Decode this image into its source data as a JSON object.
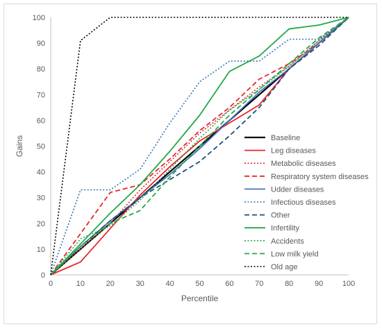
{
  "chart_data": {
    "type": "line",
    "title": "",
    "xlabel": "Percentile",
    "ylabel": "Gains",
    "xlim": [
      0,
      100
    ],
    "ylim": [
      0,
      100
    ],
    "x": [
      0,
      10,
      20,
      30,
      40,
      50,
      60,
      70,
      80,
      90,
      100
    ],
    "xticks": [
      "0",
      "10",
      "20",
      "30",
      "40",
      "50",
      "60",
      "70",
      "80",
      "90",
      "100"
    ],
    "yticks": [
      "0",
      "10",
      "20",
      "30",
      "40",
      "50",
      "60",
      "70",
      "80",
      "90",
      "100"
    ],
    "grid": false,
    "legend_position": "right",
    "series": [
      {
        "name": "Baseline",
        "color": "#000000",
        "dash": "solid",
        "width": 2.2,
        "values": [
          0,
          10,
          20,
          30,
          40,
          50,
          60,
          70,
          80,
          90,
          100
        ]
      },
      {
        "name": "Leg diseases",
        "color": "#e8242a",
        "dash": "solid",
        "width": 1.8,
        "values": [
          0,
          5,
          18,
          31,
          42,
          52,
          59,
          66,
          80,
          90,
          100
        ]
      },
      {
        "name": "Metabolic diseases",
        "color": "#e8242a",
        "dash": "dot",
        "width": 1.6,
        "values": [
          0,
          10,
          20,
          33,
          44,
          55,
          64,
          73,
          81,
          91,
          100
        ]
      },
      {
        "name": "Respiratory system diseases",
        "color": "#e8242a",
        "dash": "dash",
        "width": 1.8,
        "values": [
          0,
          16,
          32,
          35,
          45,
          56,
          65,
          76,
          82,
          90,
          100
        ]
      },
      {
        "name": "Udder diseases",
        "color": "#4472c4",
        "dash": "solid",
        "width": 1.8,
        "values": [
          0,
          11,
          21,
          30,
          39,
          49,
          60,
          71,
          80,
          90,
          100
        ]
      },
      {
        "name": "Infectious diseases",
        "color": "#2e75b6",
        "dash": "dot",
        "width": 1.6,
        "values": [
          0,
          33,
          33,
          41,
          59,
          75,
          83,
          83,
          91.5,
          91.5,
          100
        ]
      },
      {
        "name": "Other",
        "color": "#1f4e79",
        "dash": "dash",
        "width": 1.8,
        "values": [
          0,
          11,
          21,
          30,
          37,
          44,
          54,
          65,
          80,
          89,
          100
        ]
      },
      {
        "name": "Infertility",
        "color": "#22a845",
        "dash": "solid",
        "width": 1.8,
        "values": [
          0,
          12,
          24,
          35,
          48,
          62,
          79,
          85,
          95.5,
          97,
          100
        ]
      },
      {
        "name": "Accidents",
        "color": "#22a845",
        "dash": "dot",
        "width": 1.6,
        "values": [
          0,
          14,
          19,
          29,
          41,
          53,
          64,
          72,
          81,
          91,
          100
        ]
      },
      {
        "name": "Low milk yield",
        "color": "#22a845",
        "dash": "dash",
        "width": 1.8,
        "values": [
          0,
          11,
          20,
          25,
          38,
          50,
          62,
          72,
          82,
          92,
          100
        ]
      },
      {
        "name": "Old age",
        "color": "#000000",
        "dash": "dot",
        "width": 1.6,
        "values": [
          0,
          91,
          100,
          100,
          100,
          100,
          100,
          100,
          100,
          100,
          100
        ]
      }
    ]
  }
}
